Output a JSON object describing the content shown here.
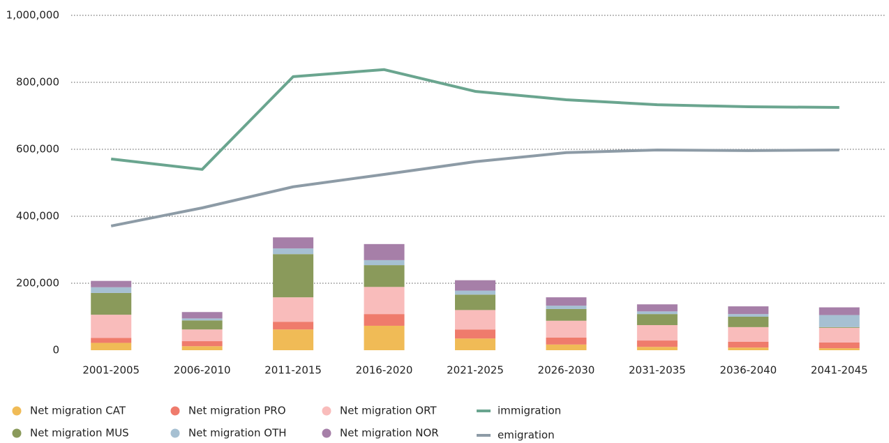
{
  "chart_data": {
    "type": "bar",
    "stacked": true,
    "categories": [
      "2001-2005",
      "2006-2010",
      "2011-2015",
      "2016-2020",
      "2021-2025",
      "2026-2030",
      "2031-2035",
      "2036-2040",
      "2041-2045"
    ],
    "ylim": [
      0,
      1000000
    ],
    "yticks": [
      0,
      {
        "value": 200000,
        "label": "200,000"
      },
      {
        "value": 400000,
        "label": "400,000"
      },
      {
        "value": 600000,
        "label": "600,000"
      },
      {
        "value": 800000,
        "label": "800,000"
      },
      {
        "value": 1000000,
        "label": "1,000,000"
      }
    ],
    "grid": true,
    "series": [
      {
        "name": "Net migration CAT",
        "color": "#f0bb56",
        "values": [
          22000,
          12000,
          62000,
          73000,
          35000,
          17000,
          10000,
          8000,
          6000
        ]
      },
      {
        "name": "Net migration PRO",
        "color": "#ef7b6c",
        "values": [
          15000,
          15000,
          23000,
          35000,
          27000,
          21000,
          19000,
          17000,
          17000
        ]
      },
      {
        "name": "Net migration ORT",
        "color": "#f9bcbb",
        "values": [
          69000,
          35000,
          73000,
          81000,
          58000,
          50000,
          46000,
          44000,
          44000
        ]
      },
      {
        "name": "Net migration MUS",
        "color": "#8a9a5b",
        "values": [
          65000,
          27000,
          129000,
          65000,
          46000,
          35000,
          33000,
          31000,
          2000
        ]
      },
      {
        "name": "Net migration OTH",
        "color": "#a6c0d2",
        "values": [
          17000,
          6000,
          17000,
          15000,
          12000,
          10000,
          8000,
          8000,
          36000
        ]
      },
      {
        "name": "Net migration NOR",
        "color": "#a67fa8",
        "values": [
          19000,
          19000,
          33000,
          48000,
          31000,
          25000,
          21000,
          23000,
          23000
        ]
      },
      {
        "name": "immigration",
        "type": "line",
        "color": "#6aa58f",
        "values": [
          571000,
          540000,
          817000,
          838000,
          773000,
          748000,
          733000,
          727000,
          725000
        ]
      },
      {
        "name": "emigration",
        "type": "line",
        "color": "#8d9ba6",
        "values": [
          371000,
          425000,
          488000,
          525000,
          563000,
          590000,
          598000,
          596000,
          598000
        ]
      }
    ]
  }
}
